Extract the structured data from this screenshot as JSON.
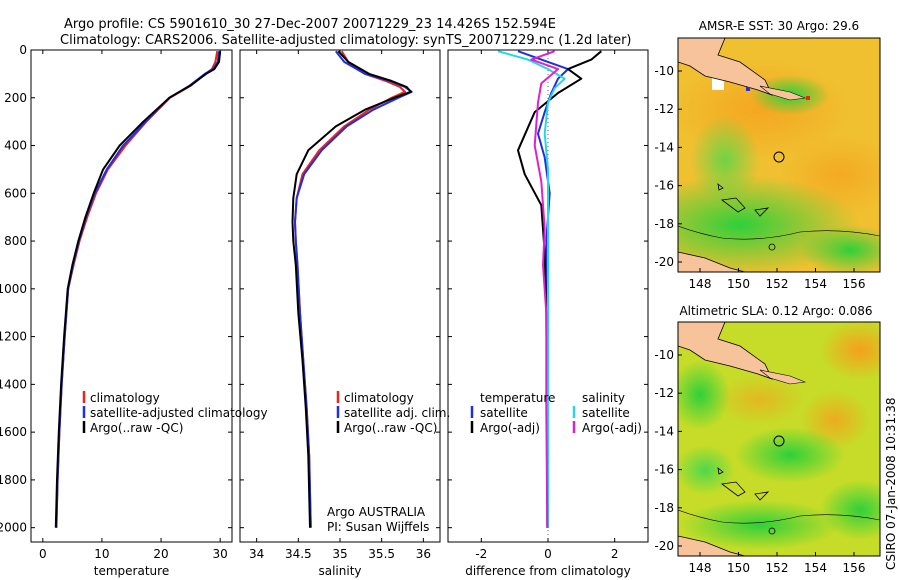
{
  "header": {
    "line1": "Argo profile: CS 5901610_30 27-Dec-2007 20071229_23 14.426S 152.594E",
    "line2": "Climatology: CARS2006. Satellite-adjusted climatology: synTS_20071229.nc (1.2d later)"
  },
  "colors": {
    "climatology": "#e8241c",
    "satellite": "#1f2fe0",
    "argo": "#000000",
    "sat_salinity": "#22d8e8",
    "argo_salinity": "#e020d0"
  },
  "chart_data": [
    {
      "name": "temperature-profile",
      "type": "line",
      "xlabel": "temperature",
      "xlim": [
        -2,
        32
      ],
      "xticks": [
        0,
        10,
        20,
        30
      ],
      "ylim": [
        2060,
        0
      ],
      "yticks": [
        0,
        200,
        400,
        600,
        800,
        1000,
        1200,
        1400,
        1600,
        1800,
        2000
      ],
      "legend": [
        "climatology",
        "satellite-adjusted climatology",
        "Argo(..raw -QC)"
      ],
      "legend_position": "lower-right",
      "series": [
        {
          "name": "climatology",
          "color": "#e8241c",
          "x": [
            29.5,
            29.2,
            28.6,
            27.5,
            25.0,
            21.5,
            17.5,
            14.0,
            11.0,
            9.0,
            7.5,
            6.2,
            5.2,
            4.3,
            3.7,
            3.2,
            2.8,
            2.5,
            2.3
          ],
          "y": [
            5,
            50,
            80,
            100,
            150,
            200,
            300,
            400,
            500,
            600,
            700,
            800,
            900,
            1000,
            1200,
            1400,
            1600,
            1800,
            2000
          ]
        },
        {
          "name": "satellite-adjusted climatology",
          "color": "#1f2fe0",
          "x": [
            29.8,
            29.6,
            28.8,
            27.4,
            24.8,
            21.4,
            17.4,
            13.6,
            10.8,
            8.8,
            7.3,
            6.1,
            5.1,
            4.3,
            3.7,
            3.2,
            2.8,
            2.5,
            2.3
          ],
          "y": [
            5,
            50,
            80,
            100,
            150,
            200,
            300,
            400,
            500,
            600,
            700,
            800,
            900,
            1000,
            1200,
            1400,
            1600,
            1800,
            2000
          ]
        },
        {
          "name": "Argo(..raw -QC)",
          "color": "#000000",
          "x": [
            30.0,
            29.8,
            29.0,
            27.6,
            24.9,
            21.4,
            17.0,
            13.0,
            10.2,
            8.6,
            7.2,
            6.0,
            5.0,
            4.2,
            3.6,
            3.1,
            2.7,
            2.4,
            2.2
          ],
          "y": [
            5,
            50,
            80,
            100,
            150,
            200,
            300,
            400,
            500,
            600,
            700,
            800,
            900,
            1000,
            1200,
            1400,
            1600,
            1800,
            2000
          ]
        }
      ]
    },
    {
      "name": "salinity-profile",
      "type": "line",
      "xlabel": "salinity",
      "xlim": [
        33.8,
        36.2
      ],
      "xticks": [
        34,
        34.5,
        35,
        35.5,
        36
      ],
      "xticklabels": [
        "34",
        "34.5",
        "35",
        "35.5",
        "36"
      ],
      "ylim": [
        2060,
        0
      ],
      "legend": [
        "climatology",
        "satellite adj. clim.",
        "Argo(..raw -QC)"
      ],
      "legend_position": "lower-right",
      "annotation": [
        "Argo AUSTRALIA",
        "PI: Susan Wijffels"
      ],
      "series": [
        {
          "name": "climatology",
          "color": "#e8241c",
          "x": [
            35.02,
            35.1,
            35.3,
            35.55,
            35.72,
            35.78,
            35.62,
            35.35,
            35.05,
            34.75,
            34.55,
            34.48,
            34.46,
            34.47,
            34.49,
            34.52,
            34.56,
            34.6,
            34.63,
            34.65
          ],
          "y": [
            5,
            50,
            100,
            130,
            155,
            175,
            200,
            250,
            320,
            420,
            520,
            620,
            720,
            800,
            900,
            1100,
            1300,
            1500,
            1700,
            2000
          ]
        },
        {
          "name": "satellite adj. clim.",
          "color": "#1f2fe0",
          "x": [
            34.95,
            35.05,
            35.3,
            35.6,
            35.78,
            35.86,
            35.7,
            35.4,
            35.08,
            34.78,
            34.57,
            34.48,
            34.46,
            34.47,
            34.49,
            34.52,
            34.56,
            34.6,
            34.63,
            34.65
          ],
          "y": [
            5,
            50,
            100,
            130,
            155,
            175,
            200,
            250,
            320,
            420,
            520,
            620,
            720,
            800,
            900,
            1100,
            1300,
            1500,
            1700,
            2000
          ]
        },
        {
          "name": "Argo(..raw -QC)",
          "color": "#000000",
          "x": [
            34.98,
            35.1,
            35.35,
            35.62,
            35.8,
            35.85,
            35.65,
            35.3,
            34.95,
            34.62,
            34.48,
            34.44,
            34.43,
            34.44,
            34.47,
            34.5,
            34.55,
            34.59,
            34.62,
            34.64
          ],
          "y": [
            5,
            50,
            100,
            130,
            155,
            175,
            200,
            250,
            320,
            420,
            520,
            620,
            720,
            800,
            900,
            1100,
            1300,
            1500,
            1700,
            2000
          ]
        }
      ]
    },
    {
      "name": "difference-profile",
      "type": "line",
      "xlabel": "difference from climatology",
      "xlim": [
        -3,
        3
      ],
      "xticks": [
        -2,
        0,
        2
      ],
      "ylim": [
        2060,
        0
      ],
      "legend_headers": [
        "temperature",
        "salinity"
      ],
      "legend": [
        "satellite",
        "Argo(-adj)",
        "satellite",
        "Argo(-adj)"
      ],
      "legend_position": "lower-center",
      "series": [
        {
          "name": "temperature satellite",
          "color": "#1f2fe0",
          "x": [
            -0.9,
            -0.2,
            0.6,
            0.3,
            0.1,
            -0.1,
            -0.3,
            -0.1,
            0.05,
            -0.05,
            0.0,
            -0.02,
            0.0
          ],
          "y": [
            5,
            40,
            80,
            120,
            180,
            260,
            350,
            450,
            600,
            800,
            1100,
            1500,
            2000
          ]
        },
        {
          "name": "temperature Argo(-adj)",
          "color": "#000000",
          "x": [
            1.6,
            1.3,
            0.6,
            1.0,
            0.3,
            -0.4,
            -0.9,
            -0.7,
            -0.2,
            -0.1,
            -0.05,
            -0.03,
            -0.02
          ],
          "y": [
            5,
            40,
            80,
            120,
            180,
            260,
            420,
            520,
            650,
            850,
            1100,
            1500,
            2000
          ]
        },
        {
          "name": "salinity satellite",
          "color": "#22d8e8",
          "x": [
            -1.5,
            -0.6,
            0.0,
            0.5,
            0.2,
            0.0,
            -0.1,
            0.0,
            0.0,
            0.0,
            0.0,
            0.0
          ],
          "y": [
            5,
            40,
            80,
            120,
            160,
            220,
            350,
            500,
            800,
            1100,
            1500,
            2000
          ]
        },
        {
          "name": "salinity Argo(-adj)",
          "color": "#e020d0",
          "x": [
            0.2,
            -0.5,
            0.3,
            -0.2,
            -0.3,
            -0.4,
            -0.2,
            -0.1,
            -0.15,
            -0.05,
            -0.05,
            -0.02
          ],
          "y": [
            5,
            40,
            80,
            140,
            220,
            400,
            550,
            750,
            900,
            1100,
            1500,
            2000
          ]
        }
      ]
    }
  ],
  "maps": [
    {
      "title": "AMSR-E SST: 30 Argo: 29.6",
      "xticks": [
        "148",
        "150",
        "152",
        "154",
        "156"
      ],
      "yticks": [
        "-10",
        "-12",
        "-14",
        "-16",
        "-18",
        "-20"
      ]
    },
    {
      "title": "Altimetric SLA: 0.12 Argo: 0.086",
      "xticks": [
        "148",
        "150",
        "152",
        "154",
        "156"
      ],
      "yticks": [
        "-10",
        "-12",
        "-14",
        "-16",
        "-18",
        "-20"
      ]
    }
  ],
  "stamp": "CSIRO 07-Jan-2008 10:31:38"
}
